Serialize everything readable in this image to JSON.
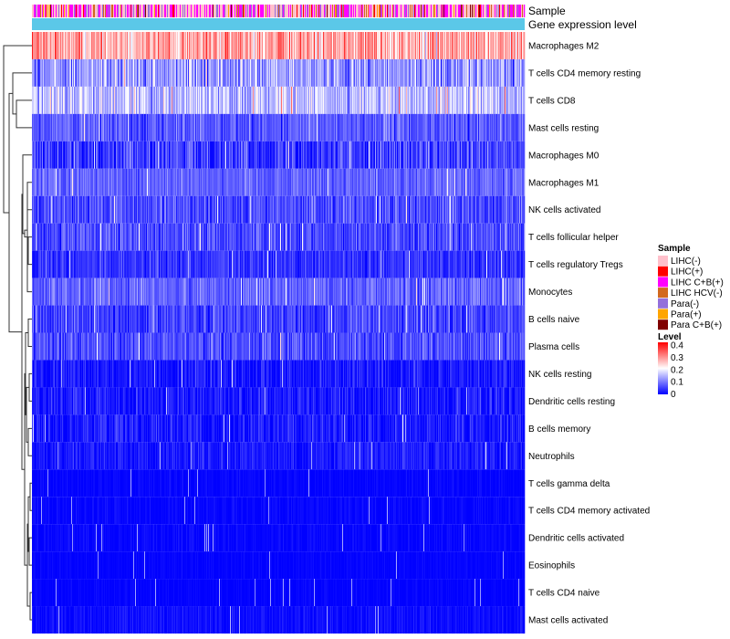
{
  "chart_data": {
    "type": "heatmap",
    "annotation_labels": [
      "Sample",
      "Gene expression level"
    ],
    "rows": [
      {
        "name": "Macrophages M2",
        "mean": 0.27,
        "spread": 0.09
      },
      {
        "name": "T cells CD4 memory resting",
        "mean": 0.12,
        "spread": 0.08
      },
      {
        "name": "T cells CD8",
        "mean": 0.15,
        "spread": 0.07
      },
      {
        "name": "Mast cells resting",
        "mean": 0.07,
        "spread": 0.05
      },
      {
        "name": "Macrophages M0",
        "mean": 0.05,
        "spread": 0.06
      },
      {
        "name": "Macrophages M1",
        "mean": 0.08,
        "spread": 0.04
      },
      {
        "name": "NK cells activated",
        "mean": 0.06,
        "spread": 0.05
      },
      {
        "name": "T cells follicular helper",
        "mean": 0.06,
        "spread": 0.05
      },
      {
        "name": "T cells regulatory  Tregs",
        "mean": 0.04,
        "spread": 0.04
      },
      {
        "name": "Monocytes",
        "mean": 0.08,
        "spread": 0.05
      },
      {
        "name": "B cells naive",
        "mean": 0.05,
        "spread": 0.05
      },
      {
        "name": "Plasma cells",
        "mean": 0.06,
        "spread": 0.05
      },
      {
        "name": "NK cells resting",
        "mean": 0.02,
        "spread": 0.04
      },
      {
        "name": "Dendritic cells resting",
        "mean": 0.02,
        "spread": 0.04
      },
      {
        "name": "B cells memory",
        "mean": 0.02,
        "spread": 0.04
      },
      {
        "name": "Neutrophils",
        "mean": 0.02,
        "spread": 0.03
      },
      {
        "name": "T cells gamma delta",
        "mean": 0.003,
        "spread": 0.012
      },
      {
        "name": "T cells CD4 memory activated",
        "mean": 0.004,
        "spread": 0.015
      },
      {
        "name": "Dendritic cells activated",
        "mean": 0.004,
        "spread": 0.014
      },
      {
        "name": "Eosinophils",
        "mean": 0.002,
        "spread": 0.01
      },
      {
        "name": "T cells CD4 naive",
        "mean": 0.002,
        "spread": 0.01
      },
      {
        "name": "Mast cells activated",
        "mean": 0.01,
        "spread": 0.02
      }
    ],
    "n_samples": 540,
    "sample_legend": {
      "title": "Sample",
      "entries": [
        {
          "label": "LIHC(-)",
          "color": "#ffc0cb",
          "weight": 0.45
        },
        {
          "label": "LIHC(+)",
          "color": "#ff0000",
          "weight": 0.03
        },
        {
          "label": "LIHC C+B(+)",
          "color": "#ff00ff",
          "weight": 0.3
        },
        {
          "label": "LIHC HCV(-)",
          "color": "#d2691e",
          "weight": 0.07
        },
        {
          "label": "Para(-)",
          "color": "#9370db",
          "weight": 0.1
        },
        {
          "label": "Para(+)",
          "color": "#ffa500",
          "weight": 0.03
        },
        {
          "label": "Para C+B(+)",
          "color": "#800000",
          "weight": 0.02
        }
      ]
    },
    "expression_bar_color": "#5bc8e8",
    "level_legend": {
      "title": "Level",
      "ticks": [
        "0.4",
        "0.3",
        "0.2",
        "0.1",
        "0"
      ],
      "min": 0,
      "max": 0.4,
      "colors": [
        "#0000ff",
        "#ffffff",
        "#ff0000"
      ]
    }
  }
}
